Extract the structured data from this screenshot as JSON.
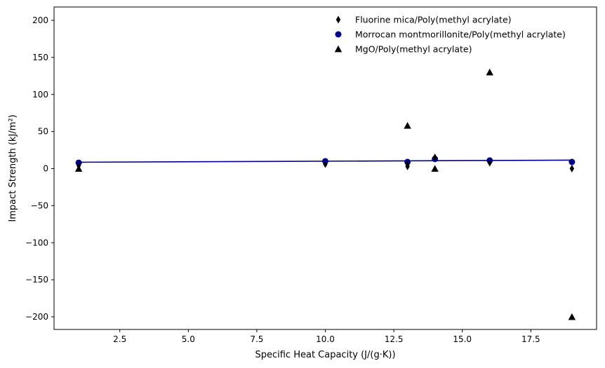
{
  "chart_data": {
    "type": "scatter",
    "title": "",
    "xlabel": "Specific Heat Capacity (J/(g·K))",
    "ylabel": "Impact Strength (kJ/m²)",
    "xlim": [
      0.1,
      19.9
    ],
    "ylim": [
      -217,
      218
    ],
    "xticks": [
      2.5,
      5.0,
      7.5,
      10.0,
      12.5,
      15.0,
      17.5
    ],
    "xtick_labels": [
      "2.5",
      "5.0",
      "7.5",
      "10.0",
      "12.5",
      "15.0",
      "17.5"
    ],
    "yticks": [
      200,
      150,
      100,
      50,
      0,
      -50,
      -100,
      -150,
      -200
    ],
    "ytick_labels": [
      "200",
      "150",
      "100",
      "50",
      "0",
      "−50",
      "−100",
      "−150",
      "−200"
    ],
    "grid": false,
    "legend_position": "top-right",
    "series": [
      {
        "name": "Fluorine mica/Poly(methyl acrylate)",
        "marker": "thin-diamond",
        "color": "#000000",
        "x": [
          1,
          10,
          13,
          13,
          14,
          16,
          19
        ],
        "y": [
          4,
          6,
          3,
          6,
          15,
          8,
          0
        ]
      },
      {
        "name": "Morrocan montmorillonite/Poly(methyl acrylate)",
        "marker": "circle",
        "color": "#00008b",
        "x": [
          1,
          10,
          13,
          14,
          16,
          19
        ],
        "y": [
          8,
          10,
          9,
          13,
          11,
          9
        ]
      },
      {
        "name": "MgO/Poly(methyl acrylate)",
        "marker": "triangle",
        "color": "#000000",
        "x": [
          1,
          13,
          14,
          16,
          19
        ],
        "y": [
          0,
          58,
          0,
          130,
          -200
        ]
      }
    ],
    "fit_line": {
      "color": "#00008b",
      "x": [
        1,
        19
      ],
      "y": [
        8.6,
        11.4
      ]
    }
  }
}
